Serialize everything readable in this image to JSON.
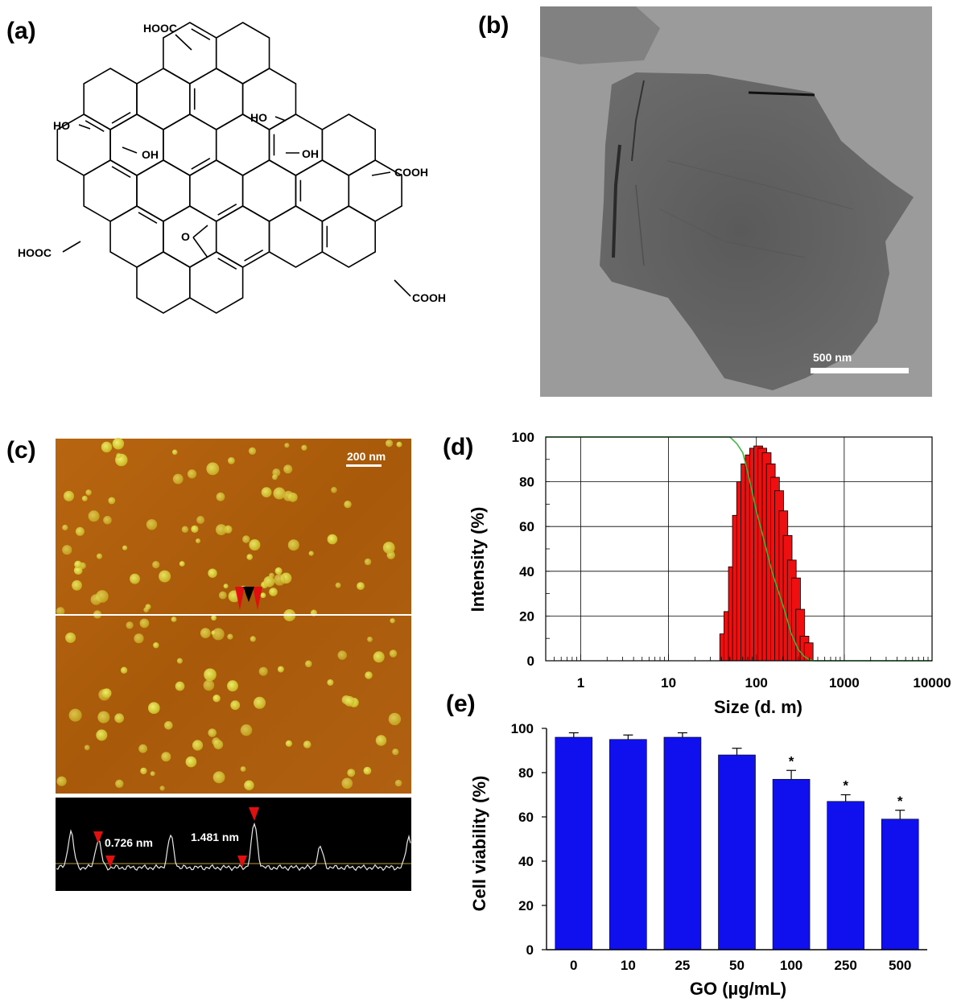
{
  "panel_labels": {
    "a": "(a)",
    "b": "(b)",
    "c": "(c)",
    "d": "(d)",
    "e": "(e)"
  },
  "panel_a": {
    "groups": {
      "hooc_top": "HOOC",
      "ho_left": "HO",
      "oh_left": "OH",
      "ho_right": "HO",
      "oh_right": "OH",
      "cooh_right": "COOH",
      "hooc_left": "HOOC",
      "epoxy_o": "O",
      "cooh_bottom": "COOH"
    }
  },
  "panel_b": {
    "scale_bar_label": "500 nm"
  },
  "panel_c": {
    "scale_bar_label": "200 nm",
    "height_label_1": "0.726 nm",
    "height_label_2": "1.481 nm",
    "colors": {
      "afm_background": "#a85a0a",
      "particle": "#d9d23a",
      "profile_bg": "#000000",
      "marker": "#e01010"
    }
  },
  "chart_data": [
    {
      "type": "bar",
      "panel": "d",
      "xlabel": "Size (d. m)",
      "ylabel": "Intensity (%)",
      "x_scale": "log",
      "xlim": [
        0.4,
        10000
      ],
      "ylim": [
        0,
        100
      ],
      "xticks": [
        1,
        10,
        100,
        1000,
        10000
      ],
      "xtick_labels": [
        "1",
        "10",
        "100",
        "1000",
        "10000"
      ],
      "yticks": [
        0,
        20,
        40,
        60,
        80,
        100
      ],
      "ytick_labels": [
        "0",
        "20",
        "40",
        "60",
        "80",
        "100"
      ],
      "grid": true,
      "histogram": {
        "bin_centers": [
          43,
          48,
          54,
          60,
          67,
          75,
          84,
          94,
          105,
          117,
          131,
          146,
          163,
          182,
          203,
          227,
          253,
          283,
          316,
          353,
          394
        ],
        "values": [
          12,
          22,
          42,
          65,
          80,
          88,
          92,
          95,
          96,
          95,
          93,
          88,
          82,
          76,
          67,
          56,
          45,
          37,
          23,
          11,
          8
        ],
        "color": "#ee1010"
      },
      "cumulative_curve": {
        "x": [
          0.4,
          20,
          50,
          60,
          70,
          80,
          90,
          100,
          120,
          150,
          200,
          250,
          300,
          350,
          400,
          450,
          10000
        ],
        "y": [
          100,
          100,
          100,
          97,
          93,
          84,
          75,
          67,
          55,
          40,
          25,
          12,
          5,
          2,
          0.5,
          0,
          0
        ],
        "color": "#33bb33"
      }
    },
    {
      "type": "bar",
      "panel": "e",
      "xlabel": "GO (µg/mL)",
      "ylabel": "Cell viability (%)",
      "categories": [
        "0",
        "10",
        "25",
        "50",
        "100",
        "250",
        "500"
      ],
      "values": [
        96,
        95,
        96,
        88,
        77,
        67,
        59
      ],
      "errors": [
        2,
        2,
        2,
        3,
        4,
        3,
        4
      ],
      "significance": [
        "",
        "",
        "",
        "",
        "*",
        "*",
        "*"
      ],
      "ylim": [
        0,
        100
      ],
      "yticks": [
        0,
        20,
        40,
        60,
        80,
        100
      ],
      "ytick_labels": [
        "0",
        "20",
        "40",
        "60",
        "80",
        "100"
      ],
      "bar_color": "#1010ee"
    }
  ]
}
